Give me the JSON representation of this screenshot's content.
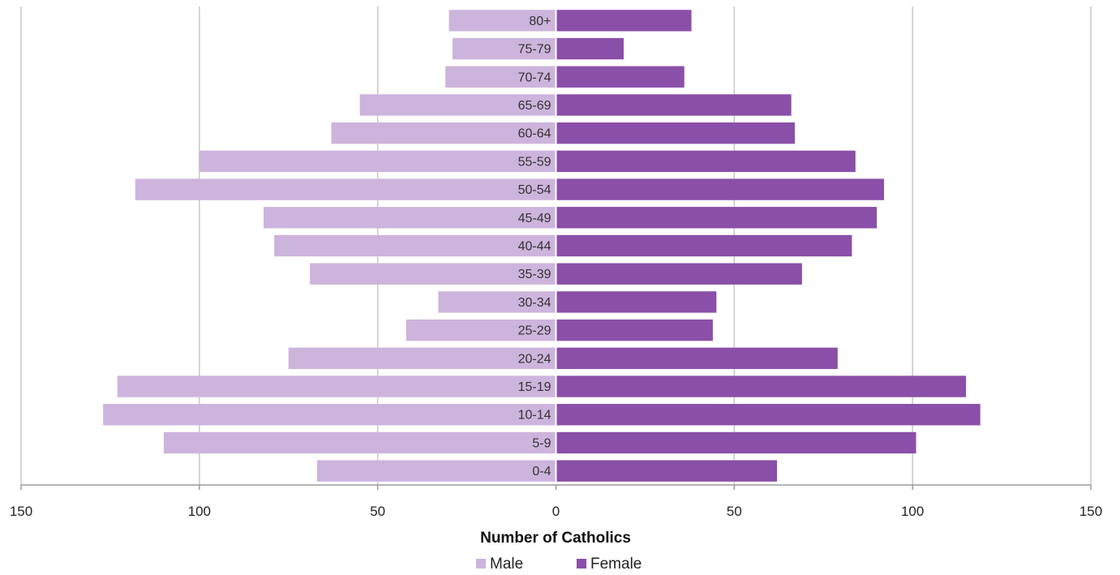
{
  "chart_data": {
    "type": "bar",
    "orientation": "horizontal",
    "subtype": "population-pyramid",
    "categories": [
      "0-4",
      "5-9",
      "10-14",
      "15-19",
      "20-24",
      "25-29",
      "30-34",
      "35-39",
      "40-44",
      "45-49",
      "50-54",
      "55-59",
      "60-64",
      "65-69",
      "70-74",
      "75-79",
      "80+"
    ],
    "series": [
      {
        "name": "Male",
        "color": "#cdb4dc",
        "side": "left",
        "values": [
          67,
          110,
          127,
          123,
          75,
          42,
          33,
          69,
          79,
          82,
          118,
          100,
          63,
          55,
          31,
          29,
          30
        ]
      },
      {
        "name": "Female",
        "color": "#8a4fa8",
        "side": "right",
        "values": [
          62,
          101,
          119,
          115,
          79,
          44,
          45,
          69,
          83,
          90,
          92,
          84,
          67,
          66,
          36,
          19,
          38
        ]
      }
    ],
    "xlim": [
      -150,
      150
    ],
    "xticks": [
      -150,
      -100,
      -50,
      0,
      50,
      100,
      150
    ],
    "xtick_labels": [
      "150",
      "100",
      "50",
      "0",
      "50",
      "100",
      "150"
    ],
    "xlabel": "Number of Catholics",
    "grid": "vertical",
    "legend_position": "bottom"
  }
}
